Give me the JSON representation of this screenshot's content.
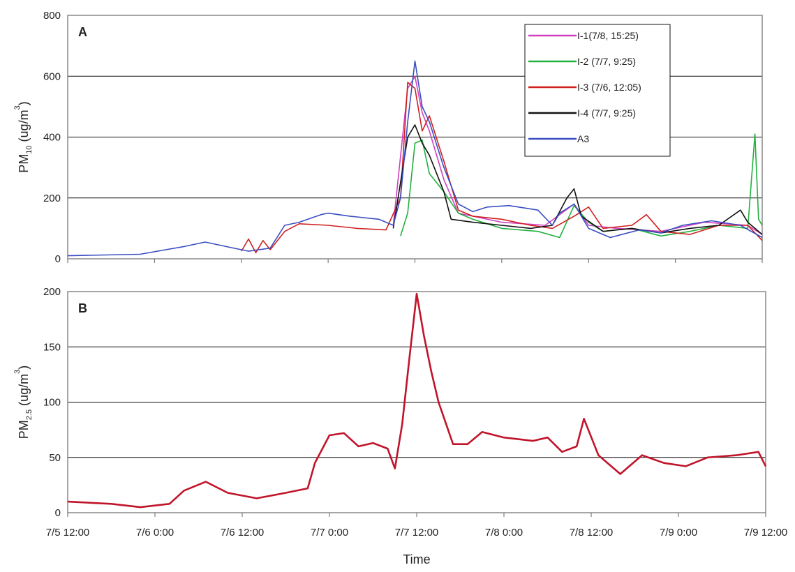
{
  "chart_data": [
    {
      "type": "line",
      "label": "A",
      "ylabel": [
        "PM",
        "10",
        " (ug/m",
        "3",
        ")"
      ],
      "ylabel_styles": [
        "normal",
        "sub",
        "normal",
        "sup",
        "normal"
      ],
      "xlim": [
        "7/5 12:00",
        "7/9 12:00"
      ],
      "xticks": [
        "7/5 12:00",
        "7/6 0:00",
        "7/6 12:00",
        "7/7 0:00",
        "7/7 12:00",
        "7/8 0:00",
        "7/8 12:00",
        "7/9 0:00",
        "7/9 12:00"
      ],
      "ylim": [
        0,
        800
      ],
      "yticks": [
        0,
        200,
        400,
        600,
        800
      ],
      "grid": true,
      "legend": "upper right",
      "series": [
        {
          "name": "I-1(7/8, 15:25)",
          "color": "#d040c0",
          "x": [
            "7/7 9:00",
            "7/7 11:00",
            "7/7 12:00",
            "7/7 13:00",
            "7/7 14:00",
            "7/7 16:00",
            "7/7 18:00",
            "7/8 0:00",
            "7/8 6:00",
            "7/8 10:00",
            "7/8 12:00",
            "7/8 16:00",
            "7/8 22:00",
            "7/9 4:00",
            "7/9 10:00",
            "7/9 12:00"
          ],
          "values": [
            110,
            560,
            600,
            480,
            420,
            260,
            150,
            120,
            110,
            180,
            110,
            100,
            90,
            120,
            110,
            80
          ]
        },
        {
          "name": "I-2 (7/7, 9:25)",
          "color": "#22b040",
          "x": [
            "7/7 10:00",
            "7/7 11:00",
            "7/7 12:00",
            "7/7 13:00",
            "7/7 14:00",
            "7/7 16:00",
            "7/7 18:00",
            "7/7 20:00",
            "7/8 0:00",
            "7/8 5:00",
            "7/8 8:00",
            "7/8 10:00",
            "7/8 12:00",
            "7/8 14:00",
            "7/8 18:00",
            "7/8 22:00",
            "7/9 2:00",
            "7/9 6:00",
            "7/9 10:00",
            "7/9 11:00",
            "7/9 11:30",
            "7/9 12:00"
          ],
          "values": [
            75,
            150,
            380,
            390,
            280,
            220,
            150,
            130,
            100,
            90,
            70,
            175,
            120,
            90,
            100,
            75,
            90,
            110,
            100,
            410,
            130,
            110
          ]
        },
        {
          "name": "I-3 (7/6, 12:05)",
          "color": "#d02020",
          "x": [
            "7/6 12:00",
            "7/6 13:00",
            "7/6 14:00",
            "7/6 15:00",
            "7/6 16:00",
            "7/6 18:00",
            "7/6 20:00",
            "7/7 0:00",
            "7/7 4:00",
            "7/7 8:00",
            "7/7 10:00",
            "7/7 11:00",
            "7/7 12:00",
            "7/7 13:00",
            "7/7 14:00",
            "7/7 16:00",
            "7/7 18:00",
            "7/7 20:00",
            "7/8 0:00",
            "7/8 4:00",
            "7/8 7:00",
            "7/8 10:00",
            "7/8 12:00",
            "7/8 14:00",
            "7/8 18:00",
            "7/8 20:00",
            "7/8 22:00",
            "7/9 2:00",
            "7/9 6:00",
            "7/9 10:00",
            "7/9 12:00"
          ],
          "values": [
            25,
            65,
            20,
            60,
            30,
            90,
            115,
            110,
            100,
            95,
            200,
            580,
            560,
            420,
            470,
            320,
            160,
            140,
            130,
            110,
            100,
            140,
            170,
            100,
            110,
            145,
            90,
            80,
            110,
            110,
            60
          ]
        },
        {
          "name": "I-4 (7/7, 9:25)",
          "color": "#111111",
          "x": [
            "7/7 9:00",
            "7/7 11:00",
            "7/7 12:00",
            "7/7 13:00",
            "7/7 14:00",
            "7/7 16:00",
            "7/7 17:00",
            "7/7 20:00",
            "7/8 0:00",
            "7/8 4:00",
            "7/8 7:00",
            "7/8 9:00",
            "7/8 10:00",
            "7/8 11:00",
            "7/8 14:00",
            "7/8 18:00",
            "7/8 22:00",
            "7/9 2:00",
            "7/9 6:00",
            "7/9 9:00",
            "7/9 10:00",
            "7/9 12:00"
          ],
          "values": [
            100,
            400,
            440,
            380,
            340,
            220,
            130,
            120,
            110,
            100,
            110,
            200,
            230,
            140,
            90,
            100,
            85,
            100,
            110,
            160,
            120,
            80
          ]
        },
        {
          "name": "A3",
          "color": "#3a4ec0",
          "x": [
            "7/5 12:00",
            "7/5 22:00",
            "7/6 4:00",
            "7/6 7:00",
            "7/6 10:00",
            "7/6 13:00",
            "7/6 16:00",
            "7/6 18:00",
            "7/6 20:00",
            "7/6 23:00",
            "7/7 0:00",
            "7/7 3:00",
            "7/7 7:00",
            "7/7 9:00",
            "7/7 10:00",
            "7/7 11:00",
            "7/7 12:00",
            "7/7 13:00",
            "7/7 14:00",
            "7/7 16:00",
            "7/7 18:00",
            "7/7 20:00",
            "7/7 22:00",
            "7/8 1:00",
            "7/8 5:00",
            "7/8 7:00",
            "7/8 8:00",
            "7/8 10:00",
            "7/8 12:00",
            "7/8 15:00",
            "7/8 19:00",
            "7/8 22:00",
            "7/9 1:00",
            "7/9 5:00",
            "7/9 9:00",
            "7/9 12:00"
          ],
          "values": [
            10,
            15,
            40,
            55,
            40,
            25,
            35,
            110,
            120,
            145,
            150,
            140,
            130,
            110,
            200,
            450,
            650,
            500,
            450,
            300,
            180,
            155,
            170,
            175,
            160,
            110,
            150,
            180,
            100,
            70,
            95,
            85,
            110,
            125,
            110,
            70
          ]
        }
      ]
    },
    {
      "type": "line",
      "label": "B",
      "ylabel": [
        "PM",
        "2.5",
        " (ug/m",
        "3",
        ")"
      ],
      "ylabel_styles": [
        "normal",
        "sub",
        "normal",
        "sup",
        "normal"
      ],
      "xlabel": "Time",
      "xlim": [
        "7/5 12:00",
        "7/9 12:00"
      ],
      "xticks": [
        "7/5 12:00",
        "7/6 0:00",
        "7/6 12:00",
        "7/7 0:00",
        "7/7 12:00",
        "7/8 0:00",
        "7/8 12:00",
        "7/9 0:00",
        "7/9 12:00"
      ],
      "ylim": [
        0,
        200
      ],
      "yticks": [
        0,
        50,
        100,
        150,
        200
      ],
      "grid": true,
      "series": [
        {
          "color": "#c0142a",
          "x": [
            "7/5 12:00",
            "7/5 18:00",
            "7/5 22:00",
            "7/6 2:00",
            "7/6 4:00",
            "7/6 7:00",
            "7/6 10:00",
            "7/6 14:00",
            "7/6 18:00",
            "7/6 21:00",
            "7/6 22:00",
            "7/7 0:00",
            "7/7 2:00",
            "7/7 4:00",
            "7/7 6:00",
            "7/7 8:00",
            "7/7 9:00",
            "7/7 10:00",
            "7/7 11:00",
            "7/7 12:00",
            "7/7 13:00",
            "7/7 14:00",
            "7/7 15:00",
            "7/7 17:00",
            "7/7 19:00",
            "7/7 21:00",
            "7/8 0:00",
            "7/8 4:00",
            "7/8 6:00",
            "7/8 8:00",
            "7/8 10:00",
            "7/8 11:00",
            "7/8 13:00",
            "7/8 16:00",
            "7/8 19:00",
            "7/8 22:00",
            "7/9 1:00",
            "7/9 4:00",
            "7/9 8:00",
            "7/9 11:00",
            "7/9 12:00"
          ],
          "values": [
            10,
            8,
            5,
            8,
            20,
            28,
            18,
            13,
            18,
            22,
            45,
            70,
            72,
            60,
            63,
            58,
            40,
            80,
            140,
            198,
            160,
            128,
            100,
            62,
            62,
            73,
            68,
            65,
            68,
            55,
            60,
            85,
            52,
            35,
            52,
            45,
            42,
            50,
            52,
            55,
            42
          ]
        }
      ]
    }
  ]
}
